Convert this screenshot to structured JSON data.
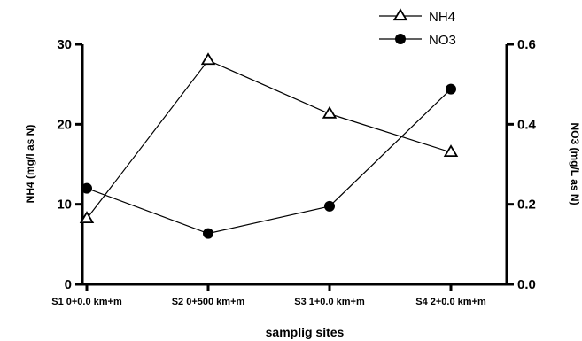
{
  "chart_data": {
    "type": "line",
    "categories": [
      "S1 0+0.0 km+m",
      "S2 0+500 km+m",
      "S3 1+0.0 km+m",
      "S4 2+0.0 km+m"
    ],
    "xlabel": "samplig sites",
    "y_left": {
      "label": "NH4 (mg/l as N)",
      "ylim": [
        0,
        30
      ],
      "ticks": [
        0,
        10,
        20,
        30
      ],
      "tick_labels": [
        "0",
        "10",
        "20",
        "30"
      ]
    },
    "y_right": {
      "label": "NO3 (mg/L as N)",
      "ylim": [
        0,
        0.6
      ],
      "ticks": [
        0,
        0.2,
        0.4,
        0.6
      ],
      "tick_labels": [
        "0.0",
        "0.2",
        "0.4",
        "0.6"
      ]
    },
    "series": [
      {
        "name": "NH4",
        "axis": "left",
        "marker": "open-triangle",
        "values": [
          8.2,
          28.0,
          21.3,
          16.5
        ]
      },
      {
        "name": "NO3",
        "axis": "right",
        "marker": "filled-circle",
        "values": [
          0.24,
          0.127,
          0.195,
          0.488
        ]
      }
    ],
    "legend_position": "top-right",
    "grid": false
  }
}
